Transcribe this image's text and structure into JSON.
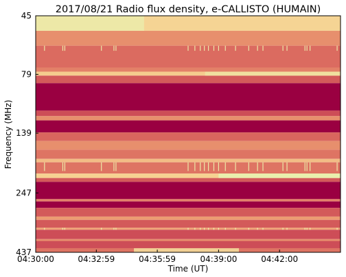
{
  "chart_data": {
    "type": "heatmap",
    "title": "2017/08/21  Radio flux density, e-CALLISTO (HUMAIN)",
    "xlabel": "Time (UT)",
    "ylabel": "Frequency (MHz)",
    "x_ticks": [
      "04:30:00",
      "04:32:59",
      "04:35:59",
      "04:39:00",
      "04:42:00"
    ],
    "x_tick_seconds": [
      0,
      179,
      359,
      540,
      720
    ],
    "x_range_seconds": [
      0,
      900
    ],
    "y_ticks": [
      "45",
      "79",
      "139",
      "247",
      "437"
    ],
    "y_tick_mhz": [
      45,
      79,
      139,
      247,
      437
    ],
    "y_range_mhz": [
      45,
      437
    ],
    "y_scale": "log",
    "colormap": [
      "#9a0041",
      "#c0344f",
      "#d9665e",
      "#ec9c72",
      "#f6d191",
      "#e8f2b0"
    ],
    "bands": [
      {
        "f0": 45,
        "f1": 52,
        "level": 0.82
      },
      {
        "f0": 52,
        "f1": 60,
        "level": 0.55
      },
      {
        "f0": 60,
        "f1": 74,
        "level": 0.42
      },
      {
        "f0": 74,
        "f1": 77,
        "level": 0.5
      },
      {
        "f0": 77,
        "f1": 80,
        "level": 0.78
      },
      {
        "f0": 80,
        "f1": 86,
        "level": 0.35
      },
      {
        "f0": 86,
        "f1": 112,
        "level": 0.0
      },
      {
        "f0": 112,
        "f1": 118,
        "level": 0.3
      },
      {
        "f0": 118,
        "f1": 123,
        "level": 0.55
      },
      {
        "f0": 123,
        "f1": 138,
        "level": 0.0
      },
      {
        "f0": 138,
        "f1": 150,
        "level": 0.4
      },
      {
        "f0": 150,
        "f1": 163,
        "level": 0.55
      },
      {
        "f0": 163,
        "f1": 178,
        "level": 0.45
      },
      {
        "f0": 178,
        "f1": 184,
        "level": 0.72
      },
      {
        "f0": 184,
        "f1": 205,
        "level": 0.45
      },
      {
        "f0": 205,
        "f1": 214,
        "level": 0.8
      },
      {
        "f0": 214,
        "f1": 222,
        "level": 0.35
      },
      {
        "f0": 222,
        "f1": 262,
        "level": 0.0
      },
      {
        "f0": 262,
        "f1": 268,
        "level": 0.5
      },
      {
        "f0": 268,
        "f1": 285,
        "level": 0.0
      },
      {
        "f0": 285,
        "f1": 310,
        "level": 0.35
      },
      {
        "f0": 310,
        "f1": 320,
        "level": 0.6
      },
      {
        "f0": 320,
        "f1": 345,
        "level": 0.35
      },
      {
        "f0": 345,
        "f1": 352,
        "level": 0.62
      },
      {
        "f0": 352,
        "f1": 385,
        "level": 0.3
      },
      {
        "f0": 385,
        "f1": 392,
        "level": 0.55
      },
      {
        "f0": 392,
        "f1": 420,
        "level": 0.3
      },
      {
        "f0": 420,
        "f1": 437,
        "level": 0.45
      }
    ],
    "bright_regions": [
      {
        "t0": 0,
        "t1": 320,
        "f0": 45,
        "f1": 52,
        "level": 0.95
      },
      {
        "t0": 500,
        "t1": 900,
        "f0": 77,
        "f1": 80,
        "level": 0.9
      },
      {
        "t0": 540,
        "t1": 900,
        "f0": 205,
        "f1": 214,
        "level": 1.0
      },
      {
        "t0": 290,
        "t1": 600,
        "f0": 420,
        "f1": 437,
        "level": 0.85
      }
    ],
    "spike_times_seconds": [
      26,
      80,
      86,
      194,
      231,
      237,
      450,
      470,
      486,
      498,
      510,
      526,
      540,
      560,
      590,
      629,
      655,
      671,
      730,
      742,
      795,
      801,
      810,
      890
    ],
    "spike_bands": [
      {
        "f0": 60,
        "f1": 63
      },
      {
        "f0": 184,
        "f1": 200
      },
      {
        "f0": 345,
        "f1": 352
      }
    ]
  }
}
